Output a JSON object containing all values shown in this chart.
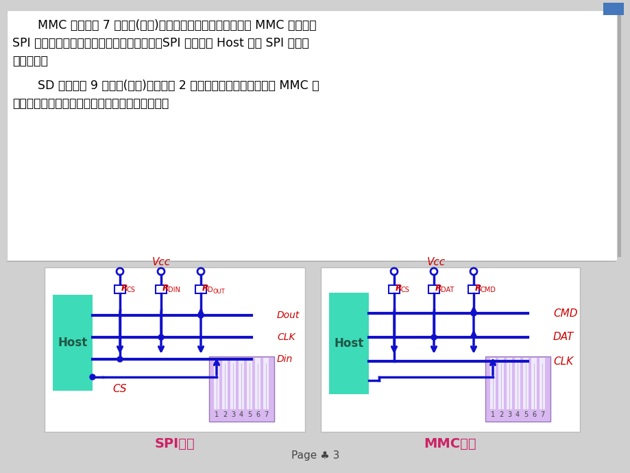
{
  "bg_color": "#d0d0d0",
  "panel_bg": "#ffffff",
  "text_color": "#000000",
  "host_color": "#3ddbb8",
  "card_color": "#c8a8e8",
  "line_color": "#1010cc",
  "red_color": "#cc0000",
  "pink_label": "#cc2266",
  "spi_label": "SPI模式",
  "mmc_label": "MMC模式",
  "page_label": "Page ♣ 3"
}
